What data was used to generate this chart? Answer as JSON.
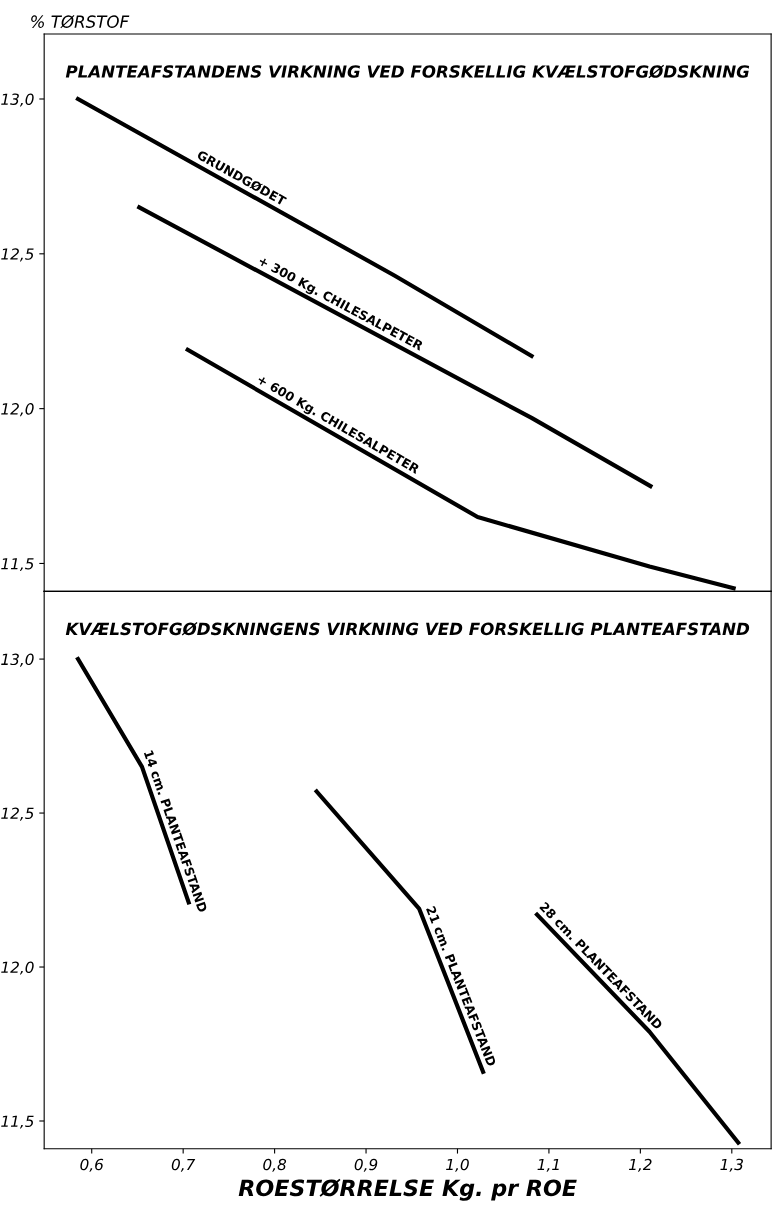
{
  "chart_data": [
    {
      "type": "line",
      "title": "PLANTEAFSTANDENS VIRKNING VED FORSKELLIG KVÆLSTOFGØDSKNING",
      "ylabel": "% TØRSTOF",
      "xlim": [
        0.548,
        1.343
      ],
      "ylim": [
        11.41,
        13.21
      ],
      "yticks": [
        {
          "value": 11.5,
          "label": "11,5"
        },
        {
          "value": 12.0,
          "label": "12,0"
        },
        {
          "value": 12.5,
          "label": "12,5"
        },
        {
          "value": 13.0,
          "label": "13,0"
        }
      ],
      "tick_labels": "y",
      "grid": false,
      "legend": false,
      "marker": "none",
      "line_style": "solid",
      "series": [
        {
          "name": "GRUNDGØDET",
          "color": "#000000",
          "x": [
            0.585,
            0.931,
            1.081
          ],
          "values": [
            13.0,
            12.43,
            12.17
          ]
        },
        {
          "name": "+ 300 Kg. CHILESALPETER",
          "color": "#000000",
          "x": [
            0.652,
            1.081,
            1.211
          ],
          "values": [
            12.65,
            11.97,
            11.75
          ]
        },
        {
          "name": "+ 600 Kg. CHILESALPETER",
          "color": "#000000",
          "x": [
            0.705,
            1.022,
            1.21,
            1.302
          ],
          "values": [
            12.19,
            11.65,
            11.49,
            11.42
          ]
        }
      ]
    },
    {
      "type": "line",
      "title": "KVÆLSTOFGØDSKNINGENS VIRKNING VED FORSKELLIG PLANTEAFSTAND",
      "xlabel": "ROESTØRRELSE Kg. pr ROE",
      "xlim": [
        0.548,
        1.343
      ],
      "ylim": [
        11.41,
        13.22
      ],
      "xticks": [
        {
          "value": 0.6,
          "label": "0,6"
        },
        {
          "value": 0.7,
          "label": "0,7"
        },
        {
          "value": 0.8,
          "label": "0,8"
        },
        {
          "value": 0.9,
          "label": "0,9"
        },
        {
          "value": 1.0,
          "label": "1,0"
        },
        {
          "value": 1.1,
          "label": "1,1"
        },
        {
          "value": 1.2,
          "label": "1,2"
        },
        {
          "value": 1.3,
          "label": "1,3"
        }
      ],
      "yticks": [
        {
          "value": 11.5,
          "label": "11,5"
        },
        {
          "value": 12.0,
          "label": "12,0"
        },
        {
          "value": 12.5,
          "label": "12,5"
        },
        {
          "value": 13.0,
          "label": "13,0"
        }
      ],
      "grid": false,
      "legend": false,
      "marker": "none",
      "line_style": "solid",
      "series": [
        {
          "name": "14 cm. PLANTEAFSTAND",
          "color": "#000000",
          "x": [
            0.585,
            0.655,
            0.706
          ],
          "values": [
            13.0,
            12.65,
            12.21
          ]
        },
        {
          "name": "21 cm. PLANTEAFSTAND",
          "color": "#000000",
          "x": [
            0.846,
            0.958,
            1.028
          ],
          "values": [
            12.57,
            12.19,
            11.66
          ]
        },
        {
          "name": "28 cm. PLANTEAFSTAND",
          "color": "#000000",
          "x": [
            1.087,
            1.21,
            1.307
          ],
          "values": [
            12.17,
            11.79,
            11.43
          ]
        }
      ]
    }
  ]
}
